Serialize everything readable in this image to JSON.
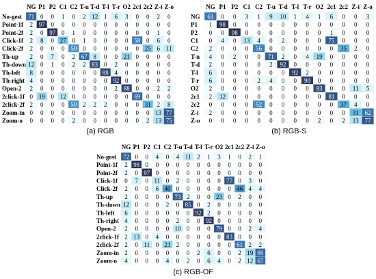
{
  "chart_data": [
    {
      "type": "heatmap",
      "caption": "(a) RGB",
      "row_labels": [
        "No-gest",
        "Point-1f",
        "Point-2f",
        "Click-1f",
        "Click-2f",
        "Th-up",
        "Th-down",
        "Th-left",
        "Th-right",
        "Open-2",
        "2click-1f",
        "2click-2f",
        "Zoom-in",
        "Zoom-o"
      ],
      "col_labels": [
        "NG",
        "P1",
        "P2",
        "C1",
        "C2",
        "T-u",
        "T-d",
        "T-l",
        "T-r",
        "O2",
        "2c1",
        "2c2",
        "Z-i",
        "Z-o"
      ],
      "values": [
        [
          71,
          0,
          0,
          1,
          0,
          2,
          12,
          1,
          6,
          3,
          0,
          0,
          2,
          0
        ],
        [
          2,
          97,
          0,
          0,
          0,
          0,
          0,
          0,
          0,
          0,
          0,
          0,
          0,
          0
        ],
        [
          2,
          0,
          97,
          0,
          1,
          0,
          0,
          0,
          0,
          0,
          0,
          0,
          1,
          0
        ],
        [
          2,
          8,
          0,
          27,
          0,
          1,
          0,
          0,
          0,
          0,
          58,
          0,
          6,
          0
        ],
        [
          2,
          0,
          0,
          0,
          50,
          0,
          0,
          0,
          0,
          0,
          0,
          25,
          6,
          11
        ],
        [
          2,
          0,
          7,
          0,
          2,
          67,
          8,
          0,
          0,
          21,
          0,
          0,
          0,
          0
        ],
        [
          12,
          0,
          1,
          0,
          2,
          2,
          83,
          0,
          2,
          0,
          0,
          0,
          0,
          0
        ],
        [
          8,
          0,
          0,
          0,
          0,
          0,
          0,
          88,
          4,
          0,
          0,
          0,
          0,
          0
        ],
        [
          4,
          0,
          0,
          0,
          0,
          0,
          0,
          0,
          92,
          0,
          0,
          0,
          0,
          0
        ],
        [
          2,
          0,
          0,
          0,
          0,
          0,
          0,
          0,
          2,
          88,
          0,
          0,
          2,
          2
        ],
        [
          0,
          19,
          0,
          12,
          0,
          0,
          0,
          0,
          0,
          0,
          69,
          0,
          0,
          0
        ],
        [
          2,
          0,
          0,
          0,
          50,
          2,
          2,
          2,
          0,
          0,
          0,
          31,
          2,
          8
        ],
        [
          0,
          0,
          0,
          0,
          0,
          0,
          0,
          0,
          0,
          0,
          0,
          0,
          13,
          77
        ],
        [
          0,
          0,
          0,
          0,
          2,
          0,
          0,
          0,
          0,
          0,
          0,
          2,
          13,
          75
        ]
      ]
    },
    {
      "type": "heatmap",
      "caption": "(b) RGB-S",
      "row_labels": [
        "NG",
        "P1",
        "P2",
        "C1",
        "C2",
        "T-u",
        "T-d",
        "T-l",
        "T-r",
        "O2",
        "2c1",
        "2c2",
        "Z-i",
        "Z-o"
      ],
      "col_labels": [
        "NG",
        "P1",
        "P2",
        "C1",
        "C2",
        "T-u",
        "T-d",
        "T-l",
        "T-r",
        "O2",
        "2c1",
        "2c2",
        "Z-i",
        "Z-o"
      ],
      "values": [
        [
          61,
          0,
          0,
          3,
          1,
          9,
          10,
          1,
          4,
          1,
          6,
          0,
          0,
          3
        ],
        [
          1,
          98,
          0,
          0,
          0,
          0,
          0,
          0,
          0,
          0,
          0,
          0,
          0,
          0
        ],
        [
          0,
          0,
          98,
          0,
          0,
          0,
          0,
          0,
          0,
          0,
          1,
          0,
          0,
          0
        ],
        [
          0,
          4,
          0,
          13,
          4,
          0,
          2,
          0,
          0,
          0,
          75,
          0,
          0,
          0
        ],
        [
          2,
          0,
          0,
          0,
          56,
          0,
          0,
          0,
          0,
          0,
          0,
          35,
          2,
          0
        ],
        [
          4,
          0,
          2,
          0,
          0,
          71,
          2,
          0,
          4,
          19,
          0,
          0,
          0,
          0
        ],
        [
          2,
          0,
          0,
          0,
          0,
          2,
          92,
          0,
          0,
          0,
          0,
          0,
          0,
          0
        ],
        [
          6,
          0,
          0,
          0,
          0,
          0,
          0,
          92,
          2,
          0,
          0,
          0,
          0,
          0
        ],
        [
          6,
          0,
          0,
          0,
          2,
          4,
          0,
          0,
          90,
          0,
          0,
          0,
          0,
          0
        ],
        [
          2,
          0,
          0,
          0,
          0,
          0,
          0,
          0,
          0,
          83,
          0,
          0,
          11,
          5
        ],
        [
          2,
          12,
          0,
          0,
          0,
          0,
          0,
          0,
          0,
          0,
          81,
          0,
          0,
          0
        ],
        [
          0,
          0,
          0,
          0,
          52,
          0,
          0,
          0,
          0,
          0,
          0,
          37,
          4,
          0
        ],
        [
          2,
          0,
          0,
          0,
          0,
          0,
          0,
          0,
          0,
          0,
          0,
          0,
          31,
          62
        ],
        [
          0,
          0,
          0,
          0,
          0,
          0,
          0,
          0,
          0,
          2,
          0,
          2,
          13,
          77
        ]
      ]
    },
    {
      "type": "heatmap",
      "caption": "(c) RGB-OF",
      "row_labels": [
        "No-gest",
        "Point-1f",
        "Point-2f",
        "Click-1f",
        "Click-2f",
        "Th-up",
        "Th-down",
        "Th-left",
        "Th-right",
        "Open-2",
        "2click-1f",
        "2click-2f",
        "Zoom-in",
        "Zoom-o"
      ],
      "col_labels": [
        "NG",
        "P1",
        "P2",
        "C1",
        "C2",
        "T-u",
        "T-d",
        "T-l",
        "T-r",
        "O2",
        "2c1",
        "2c2",
        "Z-i",
        "Z-o"
      ],
      "values": [
        [
          72,
          0,
          0,
          4,
          0,
          4,
          11,
          2,
          1,
          3,
          1,
          0,
          2,
          1
        ],
        [
          2,
          98,
          0,
          0,
          0,
          0,
          0,
          0,
          0,
          0,
          0,
          0,
          0,
          0
        ],
        [
          2,
          0,
          97,
          0,
          0,
          0,
          0,
          0,
          0,
          0,
          0,
          0,
          0,
          0
        ],
        [
          0,
          7,
          0,
          11,
          0,
          2,
          0,
          0,
          0,
          0,
          77,
          0,
          3,
          0
        ],
        [
          2,
          0,
          0,
          6,
          40,
          0,
          0,
          0,
          0,
          0,
          0,
          46,
          4,
          4
        ],
        [
          2,
          0,
          0,
          0,
          0,
          73,
          2,
          0,
          0,
          23,
          0,
          2,
          0,
          0
        ],
        [
          12,
          0,
          0,
          0,
          2,
          0,
          85,
          0,
          2,
          0,
          0,
          0,
          0,
          0
        ],
        [
          6,
          0,
          0,
          0,
          0,
          0,
          0,
          92,
          2,
          0,
          0,
          0,
          0,
          0
        ],
        [
          4,
          0,
          0,
          0,
          0,
          2,
          0,
          0,
          92,
          0,
          0,
          0,
          0,
          0
        ],
        [
          2,
          0,
          0,
          0,
          0,
          10,
          0,
          0,
          0,
          79,
          0,
          0,
          2,
          4
        ],
        [
          2,
          13,
          0,
          4,
          0,
          0,
          0,
          0,
          0,
          0,
          83,
          0,
          0,
          0
        ],
        [
          2,
          0,
          11,
          0,
          21,
          2,
          0,
          0,
          0,
          0,
          0,
          61,
          2,
          2
        ],
        [
          2,
          0,
          0,
          0,
          0,
          0,
          0,
          2,
          6,
          0,
          0,
          2,
          19,
          69
        ],
        [
          4,
          0,
          0,
          0,
          4,
          0,
          2,
          0,
          6,
          4,
          0,
          2,
          12,
          67
        ]
      ]
    }
  ]
}
